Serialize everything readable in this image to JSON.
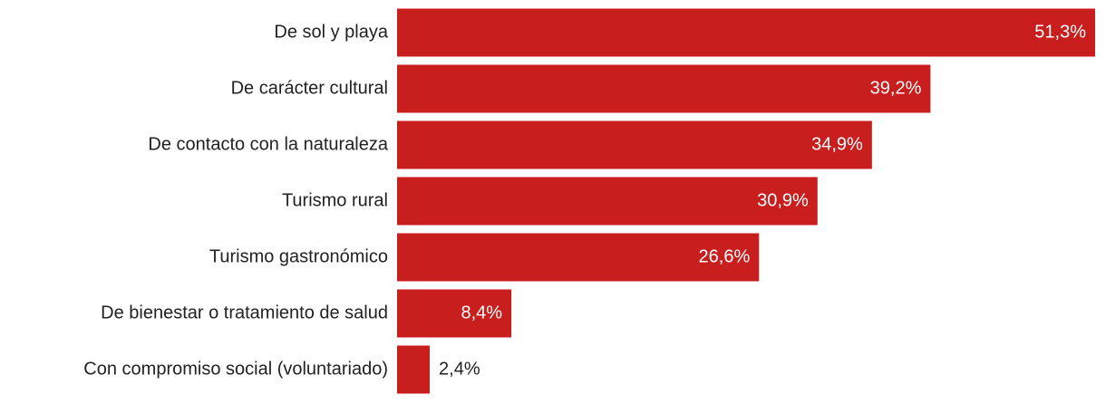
{
  "chart_data": {
    "type": "bar",
    "orientation": "horizontal",
    "categories": [
      "De sol y playa",
      "De carácter cultural",
      "De contacto con la naturaleza",
      "Turismo rural",
      "Turismo gastronómico",
      "De bienestar o tratamiento de salud",
      "Con compromiso social (voluntariado)"
    ],
    "values": [
      51.3,
      39.2,
      34.9,
      30.9,
      26.6,
      8.4,
      2.4
    ],
    "value_labels": [
      "51,3%",
      "39,2%",
      "34,9%",
      "30,9%",
      "26,6%",
      "8,4%",
      "2,4%"
    ],
    "color": "#c81e1e",
    "xlim": [
      0,
      51.3
    ]
  }
}
